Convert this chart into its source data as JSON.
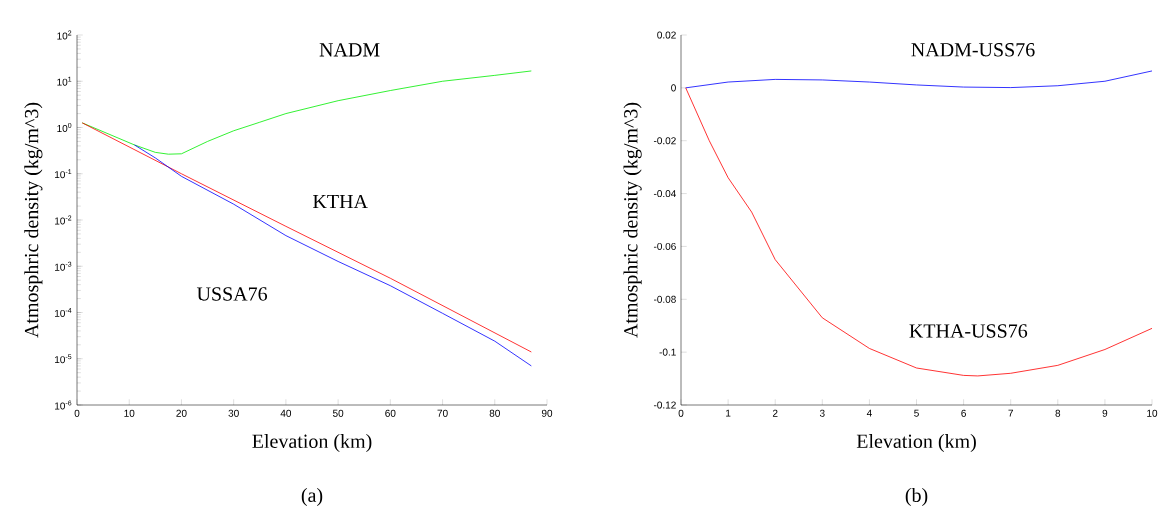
{
  "chart_data": [
    {
      "type": "line",
      "xlabel": "Elevation (km)",
      "ylabel": "Atmosphric density (kg/m^3)",
      "annotations": [
        "(a)"
      ],
      "log": "y",
      "xlim": [
        0,
        90
      ],
      "ylim": [
        1e-06,
        100
      ],
      "xticks": [
        0,
        10,
        20,
        30,
        40,
        50,
        60,
        70,
        80,
        90
      ],
      "yticks": [
        {
          "value": 1e-06,
          "label": "10$^{-6}$"
        },
        {
          "value": 1e-05,
          "label": "10$^{-5}$"
        },
        {
          "value": 0.0001,
          "label": "10$^{-4}$"
        },
        {
          "value": 0.001,
          "label": "10$^{-3}$"
        },
        {
          "value": 0.01,
          "label": "10$^{-2}$"
        },
        {
          "value": 0.1,
          "label": "10$^{-1}$"
        },
        {
          "value": 1,
          "label": "10$^{0}$"
        },
        {
          "value": 10,
          "label": "10$^{1}$"
        },
        {
          "value": 100,
          "label": "10$^{2}$"
        }
      ],
      "series": [
        {
          "name": "NADM",
          "color": "#00ee00",
          "x": [
            1,
            11,
            15,
            17.5,
            20,
            25,
            30,
            35,
            40,
            50,
            60,
            70,
            80,
            87
          ],
          "values": [
            1.26,
            0.42,
            0.29,
            0.265,
            0.27,
            0.5,
            0.85,
            1.3,
            2.0,
            3.8,
            6.3,
            10,
            13.4,
            16.7
          ]
        },
        {
          "name": "KTHA",
          "color": "#ff0000",
          "x": [
            1,
            20,
            40,
            60,
            87
          ],
          "values": [
            1.26,
            0.1,
            0.0073,
            0.00055,
            1.4e-05
          ]
        },
        {
          "name": "USSA76",
          "color": "#0000ff",
          "x": [
            11,
            15,
            20,
            30,
            40,
            50,
            60,
            70,
            80,
            87
          ],
          "values": [
            0.42,
            0.22,
            0.088,
            0.022,
            0.0046,
            0.00127,
            0.00038,
            9.6e-05,
            2.4e-05,
            7e-06
          ]
        }
      ]
    },
    {
      "type": "line",
      "xlabel": "Elevation (km)",
      "ylabel": "Atmosphric density (kg/m^3)",
      "annotations": [
        "(b)"
      ],
      "xlim": [
        0,
        10
      ],
      "ylim": [
        -0.12,
        0.02
      ],
      "xticks": [
        0,
        1,
        2,
        3,
        4,
        5,
        6,
        7,
        8,
        9,
        10
      ],
      "yticks": [
        -0.12,
        -0.1,
        -0.08,
        -0.06,
        -0.04,
        -0.02,
        0,
        0.02
      ],
      "series": [
        {
          "name": "NADM-USS76",
          "color": "#0000ff",
          "x": [
            0.1,
            1,
            2,
            3,
            4,
            5,
            6,
            7,
            8,
            9,
            10
          ],
          "values": [
            0,
            0.0022,
            0.0032,
            0.003,
            0.0022,
            0.0011,
            0.0003,
            0.0001,
            0.0008,
            0.0025,
            0.0064
          ]
        },
        {
          "name": "KTHA-USS76",
          "color": "#ff0000",
          "x": [
            0.1,
            0.6,
            1,
            1.5,
            2,
            3,
            4,
            5,
            6,
            6.3,
            7,
            8,
            9,
            10
          ],
          "values": [
            0,
            -0.02,
            -0.034,
            -0.047,
            -0.065,
            -0.087,
            -0.0986,
            -0.106,
            -0.1088,
            -0.109,
            -0.108,
            -0.105,
            -0.099,
            -0.091
          ]
        }
      ]
    }
  ]
}
